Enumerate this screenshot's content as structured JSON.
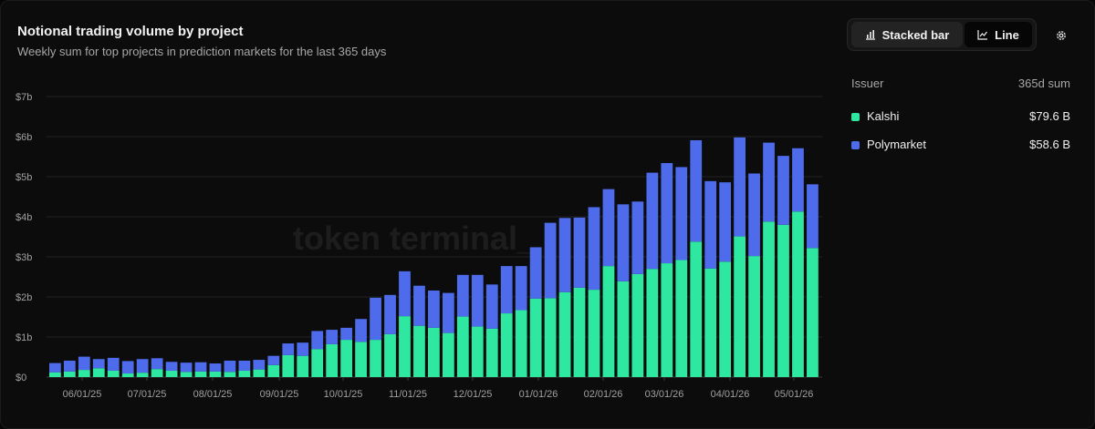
{
  "header": {
    "title": "Notional trading volume by project",
    "subtitle": "Weekly sum for top projects in prediction markets for the last 365 days"
  },
  "toolbar": {
    "stacked_label": "Stacked bar",
    "line_label": "Line",
    "active": "Stacked bar",
    "settings_icon": "gear-icon"
  },
  "watermark": "token terminal_",
  "legend": {
    "issuer_header": "Issuer",
    "sum_header": "365d sum",
    "items": [
      {
        "name": "Kalshi",
        "value": "$79.6 B",
        "color": "#2ee8a1"
      },
      {
        "name": "Polymarket",
        "value": "$58.6 B",
        "color": "#4d6bea"
      }
    ]
  },
  "chart_data": {
    "type": "bar",
    "stacked": true,
    "title": "Notional trading volume by project",
    "subtitle": "Weekly sum for top projects in prediction markets for the last 365 days",
    "unit": "USD billions",
    "ylim": [
      0,
      7
    ],
    "y_ticks": [
      "$0",
      "$1b",
      "$2b",
      "$3b",
      "$4b",
      "$5b",
      "$6b",
      "$7b"
    ],
    "x_tick_labels": [
      "06/01/25",
      "07/01/25",
      "08/01/25",
      "09/01/25",
      "10/01/25",
      "11/01/25",
      "12/01/25",
      "01/01/26",
      "02/01/26",
      "03/01/26",
      "04/01/26",
      "05/01/26"
    ],
    "grid": true,
    "legend_position": "right",
    "series": [
      {
        "name": "Kalshi",
        "color": "#2ee8a1",
        "values": [
          0.12,
          0.14,
          0.18,
          0.22,
          0.16,
          0.09,
          0.11,
          0.2,
          0.16,
          0.13,
          0.14,
          0.14,
          0.13,
          0.16,
          0.19,
          0.3,
          0.55,
          0.53,
          0.7,
          0.82,
          0.93,
          0.88,
          0.93,
          1.07,
          1.52,
          1.28,
          1.23,
          1.1,
          1.51,
          1.26,
          1.21,
          1.59,
          1.67,
          1.96,
          1.97,
          2.12,
          2.23,
          2.18,
          2.77,
          2.39,
          2.57,
          2.7,
          2.84,
          2.92,
          3.38,
          2.71,
          2.88,
          3.51,
          3.02,
          3.88,
          3.8,
          4.13,
          3.22
        ]
      },
      {
        "name": "Polymarket",
        "color": "#4d6bea",
        "values": [
          0.23,
          0.27,
          0.33,
          0.23,
          0.32,
          0.31,
          0.34,
          0.27,
          0.22,
          0.23,
          0.23,
          0.2,
          0.28,
          0.25,
          0.24,
          0.23,
          0.29,
          0.33,
          0.45,
          0.36,
          0.3,
          0.57,
          1.05,
          0.98,
          1.12,
          1.0,
          0.93,
          1.0,
          1.04,
          1.29,
          1.1,
          1.18,
          1.1,
          1.28,
          1.88,
          1.85,
          1.75,
          2.06,
          1.92,
          1.92,
          1.81,
          2.4,
          2.5,
          2.32,
          2.53,
          2.18,
          1.98,
          2.47,
          2.06,
          1.97,
          1.72,
          1.58,
          1.59
        ]
      }
    ]
  }
}
